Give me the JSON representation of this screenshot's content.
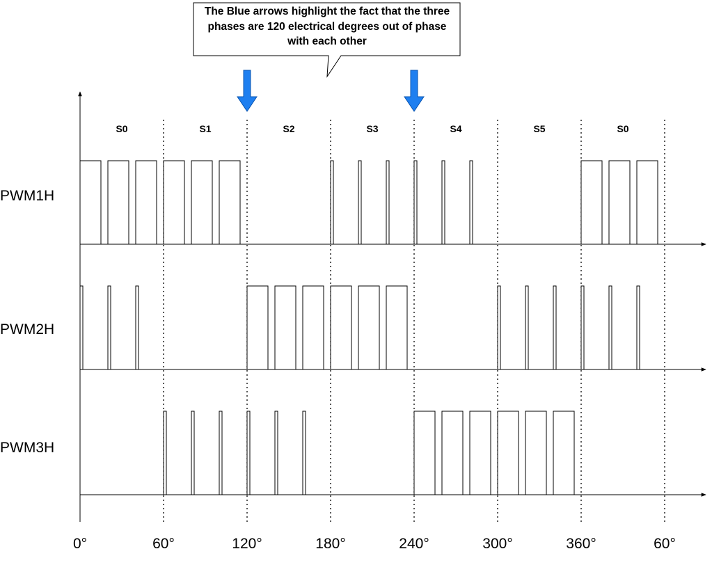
{
  "callout": {
    "text": "The Blue arrows highlight the fact that the three phases are 120 electrical degrees out of phase with each other"
  },
  "colors": {
    "arrow": "#1e7ff0",
    "line": "#000000"
  },
  "sectors": [
    "S0",
    "S1",
    "S2",
    "S3",
    "S4",
    "S5",
    "S0"
  ],
  "x_ticks": [
    "0°",
    "60°",
    "120°",
    "180°",
    "240°",
    "300°",
    "360°",
    "60°"
  ],
  "signals": [
    {
      "name": "PWM1H",
      "pulse_widths": [
        [
          1,
          1,
          1
        ],
        [
          1,
          1,
          1
        ],
        [
          0,
          0,
          0
        ],
        [
          0.1,
          0.1,
          0.1
        ],
        [
          0.1,
          0.1,
          0.1
        ],
        [
          0,
          0,
          0
        ],
        [
          1,
          1,
          1
        ]
      ]
    },
    {
      "name": "PWM2H",
      "pulse_widths": [
        [
          0.1,
          0.1,
          0.1
        ],
        [
          0,
          0,
          0
        ],
        [
          1,
          1,
          1
        ],
        [
          1,
          1,
          1
        ],
        [
          0,
          0,
          0
        ],
        [
          0.1,
          0.1,
          0.1
        ],
        [
          0.1,
          0.1,
          0.1
        ]
      ]
    },
    {
      "name": "PWM3H",
      "pulse_widths": [
        [
          0,
          0,
          0
        ],
        [
          0.1,
          0.1,
          0.1
        ],
        [
          0.1,
          0.1,
          0.1
        ],
        [
          0,
          0,
          0
        ],
        [
          1,
          1,
          1
        ],
        [
          1,
          1,
          1
        ],
        [
          0,
          0,
          0
        ]
      ]
    }
  ],
  "arrow_positions_deg": [
    120,
    240
  ],
  "pulses_per_sector": 3
}
